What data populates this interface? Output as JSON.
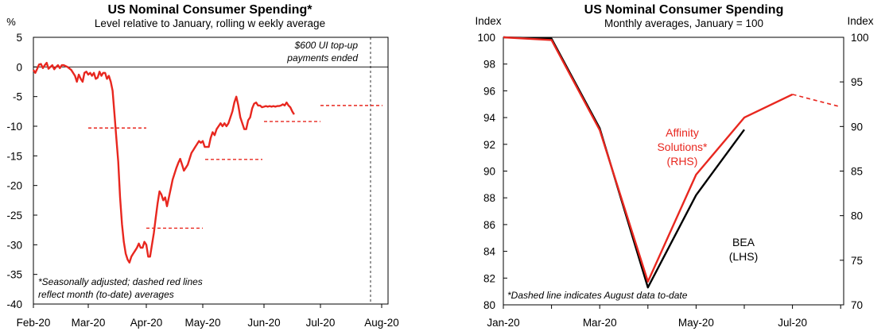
{
  "colors": {
    "red": "#e8271f",
    "black": "#000000"
  },
  "chart_data": [
    {
      "type": "line",
      "title": "US Nominal Consumer Spending*",
      "subtitle": "Level relative to January, rolling w eekly average",
      "ylabel": "%",
      "ylim": [
        -40,
        5
      ],
      "yticks": [
        "5",
        "0",
        "-5",
        "-10",
        "-15",
        "-20",
        "-25",
        "-30",
        "-35",
        "-40"
      ],
      "xticks": [
        "Feb-20",
        "Mar-20",
        "Apr-20",
        "May-20",
        "Jun-20",
        "Jul-20",
        "Aug-20"
      ],
      "annotation": "$600 UI top-up payments ended",
      "annotation_lines": [
        "$600 UI top-up",
        "payments  ended"
      ],
      "footnote_lines": [
        "*Seasonally adjusted; dashed red lines",
        "reflect month  (to-date) averages"
      ],
      "series": [
        {
          "values_by_day": [
            [
              0,
              -0.5
            ],
            [
              1,
              -1.0
            ],
            [
              2,
              -0.3
            ],
            [
              3,
              0.4
            ],
            [
              4,
              0.5
            ],
            [
              5,
              -0.2
            ],
            [
              6,
              0.3
            ],
            [
              7,
              0.7
            ],
            [
              8,
              -0.3
            ],
            [
              9,
              0.0
            ],
            [
              10,
              0.3
            ],
            [
              11,
              -0.4
            ],
            [
              12,
              0.0
            ],
            [
              13,
              0.3
            ],
            [
              14,
              -0.2
            ],
            [
              15,
              0.3
            ],
            [
              16,
              0.3
            ],
            [
              18,
              0.0
            ],
            [
              20,
              -0.5
            ],
            [
              22,
              -1.5
            ],
            [
              23,
              -2.5
            ],
            [
              24,
              -1.3
            ],
            [
              25,
              -2.0
            ],
            [
              26,
              -2.5
            ],
            [
              27,
              -1.0
            ],
            [
              28,
              -0.8
            ],
            [
              29,
              -1.3
            ],
            [
              30,
              -1.0
            ],
            [
              31,
              -1.5
            ],
            [
              32,
              -1.0
            ],
            [
              33,
              -2.0
            ],
            [
              34,
              -1.8
            ],
            [
              35,
              -0.8
            ],
            [
              36,
              -1.5
            ],
            [
              37,
              -1.0
            ],
            [
              38,
              -1.0
            ],
            [
              39,
              -2.0
            ],
            [
              40,
              -1.5
            ],
            [
              41,
              -2.5
            ],
            [
              42,
              -4.0
            ],
            [
              43,
              -8.0
            ],
            [
              44,
              -12.0
            ],
            [
              45,
              -16.0
            ],
            [
              46,
              -22.0
            ],
            [
              47,
              -26.5
            ],
            [
              48,
              -29.5
            ],
            [
              49,
              -31.5
            ],
            [
              50,
              -32.5
            ],
            [
              51,
              -33.0
            ],
            [
              52,
              -32.0
            ],
            [
              53,
              -31.5
            ],
            [
              54,
              -31.0
            ],
            [
              55,
              -30.5
            ],
            [
              56,
              -29.8
            ],
            [
              57,
              -30.5
            ],
            [
              58,
              -30.5
            ],
            [
              59,
              -29.5
            ],
            [
              60,
              -30.0
            ],
            [
              61,
              -32.0
            ],
            [
              62,
              -32.0
            ],
            [
              63,
              -30.0
            ],
            [
              64,
              -28.0
            ],
            [
              65,
              -25.5
            ],
            [
              66,
              -23.0
            ],
            [
              67,
              -21.0
            ],
            [
              68,
              -21.5
            ],
            [
              69,
              -22.5
            ],
            [
              70,
              -22.0
            ],
            [
              71,
              -23.5
            ],
            [
              72,
              -22.0
            ],
            [
              73,
              -20.5
            ],
            [
              74,
              -19.0
            ],
            [
              75,
              -18.0
            ],
            [
              76,
              -17.0
            ],
            [
              77,
              -16.2
            ],
            [
              78,
              -15.5
            ],
            [
              79,
              -16.5
            ],
            [
              80,
              -17.5
            ],
            [
              81,
              -17.0
            ],
            [
              82,
              -16.5
            ],
            [
              83,
              -15.5
            ],
            [
              84,
              -14.5
            ],
            [
              85,
              -14.0
            ],
            [
              86,
              -13.5
            ],
            [
              87,
              -13.0
            ],
            [
              88,
              -12.5
            ],
            [
              89,
              -12.8
            ],
            [
              90,
              -12.5
            ],
            [
              91,
              -13.5
            ],
            [
              92,
              -13.5
            ],
            [
              93,
              -13.5
            ],
            [
              94,
              -12.0
            ],
            [
              95,
              -11.0
            ],
            [
              96,
              -11.5
            ],
            [
              97,
              -10.5
            ],
            [
              98,
              -10.0
            ],
            [
              99,
              -9.5
            ],
            [
              100,
              -10.0
            ],
            [
              101,
              -9.5
            ],
            [
              102,
              -10.0
            ],
            [
              103,
              -9.5
            ],
            [
              104,
              -8.5
            ],
            [
              105,
              -7.5
            ],
            [
              106,
              -6.0
            ],
            [
              107,
              -5.0
            ],
            [
              108,
              -6.5
            ],
            [
              109,
              -8.5
            ],
            [
              110,
              -9.5
            ],
            [
              111,
              -10.5
            ],
            [
              112,
              -10.5
            ],
            [
              113,
              -9.0
            ],
            [
              114,
              -8.5
            ],
            [
              115,
              -7.0
            ],
            [
              116,
              -6.2
            ],
            [
              117,
              -6.0
            ],
            [
              118,
              -6.5
            ],
            [
              119,
              -6.5
            ],
            [
              120,
              -6.8
            ],
            [
              121,
              -6.7
            ],
            [
              122,
              -6.6
            ],
            [
              123,
              -6.7
            ],
            [
              124,
              -6.6
            ],
            [
              125,
              -6.7
            ],
            [
              126,
              -6.6
            ],
            [
              127,
              -6.7
            ],
            [
              128,
              -6.6
            ],
            [
              129,
              -6.6
            ],
            [
              130,
              -6.5
            ],
            [
              131,
              -6.3
            ],
            [
              132,
              -6.5
            ],
            [
              133,
              -6.0
            ],
            [
              134,
              -6.5
            ],
            [
              135,
              -6.8
            ],
            [
              136,
              -7.5
            ],
            [
              137,
              -8.0
            ]
          ]
        }
      ],
      "monthly_averages": [
        {
          "month": "Mar-20",
          "value": -10.3
        },
        {
          "month": "Apr-20",
          "value": -27.2
        },
        {
          "month": "May-20",
          "value": -15.6
        },
        {
          "month": "Jun-20",
          "value": -9.2
        },
        {
          "month": "Jul-20",
          "value": -6.5
        },
        {
          "month": "Aug-20",
          "value": -6.5
        }
      ]
    },
    {
      "type": "line",
      "title": "US Nominal Consumer Spending",
      "subtitle": "Monthly averages, January = 100",
      "ylabel_left": "Index",
      "ylabel_right": "Index",
      "ylim_left": [
        80,
        100
      ],
      "ylim_right": [
        70,
        100
      ],
      "yticks_left": [
        "100",
        "98",
        "96",
        "94",
        "92",
        "90",
        "88",
        "86",
        "84",
        "82",
        "80"
      ],
      "yticks_right": [
        "100",
        "95",
        "90",
        "85",
        "80",
        "75",
        "70"
      ],
      "xticks": [
        "Jan-20",
        "Mar-20",
        "May-20",
        "Jul-20"
      ],
      "x": [
        "Jan-20",
        "Feb-20",
        "Mar-20",
        "Apr-20",
        "May-20",
        "Jun-20",
        "Jul-20",
        "Aug-20"
      ],
      "footnote": "*Dashed line indicates August data to-date",
      "series": [
        {
          "name": "BEA (LHS)",
          "label_lines": [
            "BEA",
            "(LHS)"
          ],
          "axis": "left",
          "values": [
            100,
            99.9,
            93.2,
            81.3,
            88.2,
            93.1,
            null,
            null
          ]
        },
        {
          "name": "Affinity Solutions* (RHS)",
          "label_lines": [
            "Affinity",
            "Solutions*",
            "(RHS)"
          ],
          "axis": "right",
          "values": [
            100,
            99.7,
            89.6,
            72.6,
            84.6,
            91.0,
            93.6,
            92.2
          ],
          "dashed_from": "Jul-20"
        }
      ]
    }
  ]
}
